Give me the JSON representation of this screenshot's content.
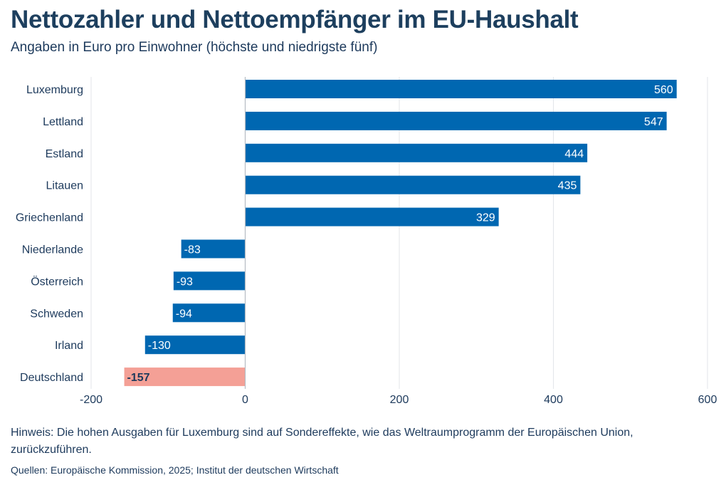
{
  "chart_data": {
    "type": "bar",
    "orientation": "horizontal",
    "title": "Nettozahler und Nettoempfänger im EU-Haushalt",
    "subtitle": "Angaben in Euro pro Einwohner (höchste und niedrigste fünf)",
    "categories": [
      "Luxemburg",
      "Lettland",
      "Estland",
      "Litauen",
      "Griechenland",
      "Niederlande",
      "Österreich",
      "Schweden",
      "Irland",
      "Deutschland"
    ],
    "values": [
      560,
      547,
      444,
      435,
      329,
      -83,
      -93,
      -94,
      -130,
      -157
    ],
    "highlight": "Deutschland",
    "xlim": [
      -200,
      600
    ],
    "xticks": [
      -200,
      0,
      200,
      400,
      600
    ],
    "grid": true,
    "colors": {
      "bar": "#0067b1",
      "highlight": "#f4a096",
      "label_on_bar": "#ffffff",
      "highlight_label": "#1d3a5c"
    }
  },
  "note": "Hinweis: Die hohen Ausgaben für Luxemburg sind auf Sondereffekte, wie das Weltraumprogramm der Europäischen Union, zurückzuführen.",
  "source": "Quellen: Europäische Kommission, 2025; Institut der deutschen Wirtschaft"
}
